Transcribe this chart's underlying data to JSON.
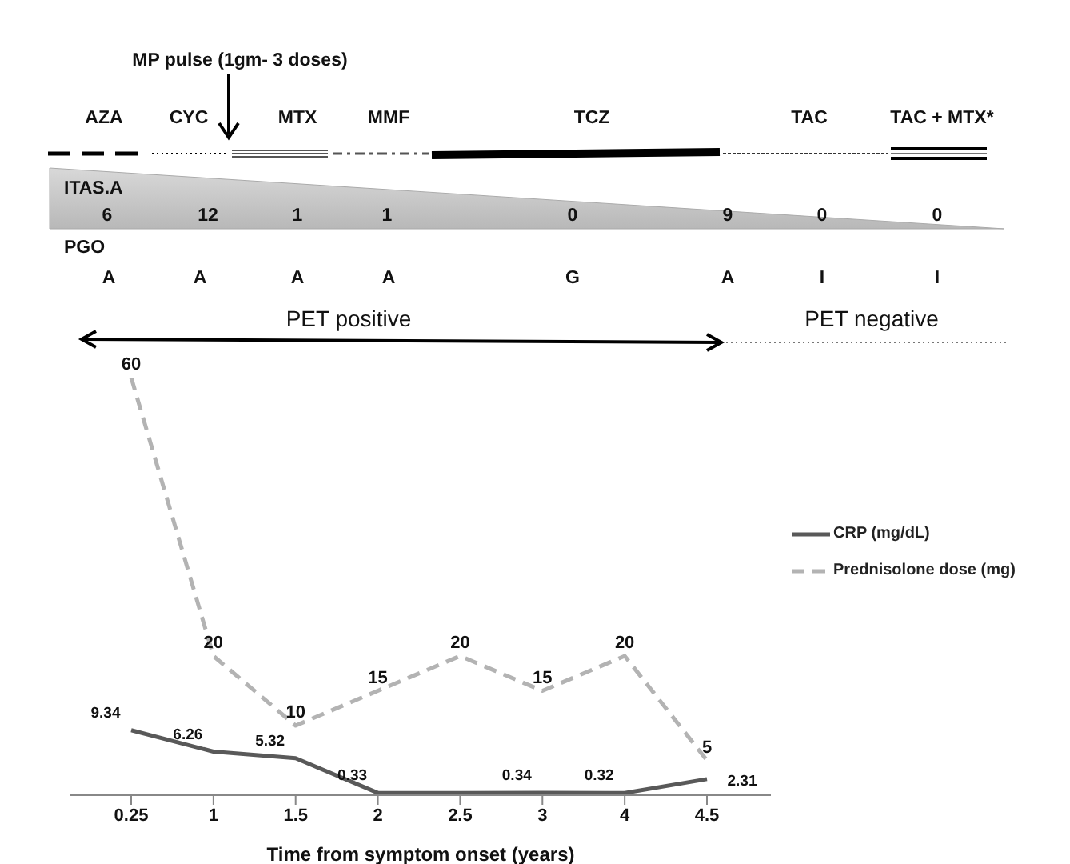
{
  "chart_data": {
    "type": "line",
    "xlabel": "Time from symptom onset (years)",
    "categories": [
      "0.25",
      "1",
      "1.5",
      "2",
      "2.5",
      "3",
      "4",
      "4.5"
    ],
    "series": [
      {
        "name": "CRP (mg/dL)",
        "color": "#595959",
        "line_style": "solid",
        "values": [
          9.34,
          6.26,
          5.32,
          0.33,
          0.33,
          0.34,
          0.32,
          2.31
        ],
        "value_labels": [
          "9.34",
          "6.26",
          "5.32",
          "0.33",
          null,
          "0.34",
          "0.32",
          "2.31"
        ]
      },
      {
        "name": "Prednisolone dose (mg)",
        "color": "#b3b3b3",
        "line_style": "dashed",
        "values": [
          60,
          20,
          10,
          15,
          20,
          15,
          20,
          5
        ],
        "value_labels": [
          "60",
          "20",
          "10",
          "15",
          "20",
          "15",
          "20",
          "5"
        ]
      }
    ],
    "legend": "right",
    "grid": false,
    "marker": "none",
    "tick_labels": "x",
    "annotations": [
      "MP pulse (1gm- 3 doses)",
      "AZA",
      "CYC",
      "MTX",
      "MMF",
      "TCZ",
      "TAC",
      "TAC + MTX*",
      "ITAS.A",
      "6",
      "12",
      "1",
      "1",
      "0",
      "9",
      "0",
      "0",
      "PGO",
      "A",
      "A",
      "A",
      "A",
      "G",
      "A",
      "I",
      "I",
      "PET positive",
      "PET negative"
    ]
  }
}
